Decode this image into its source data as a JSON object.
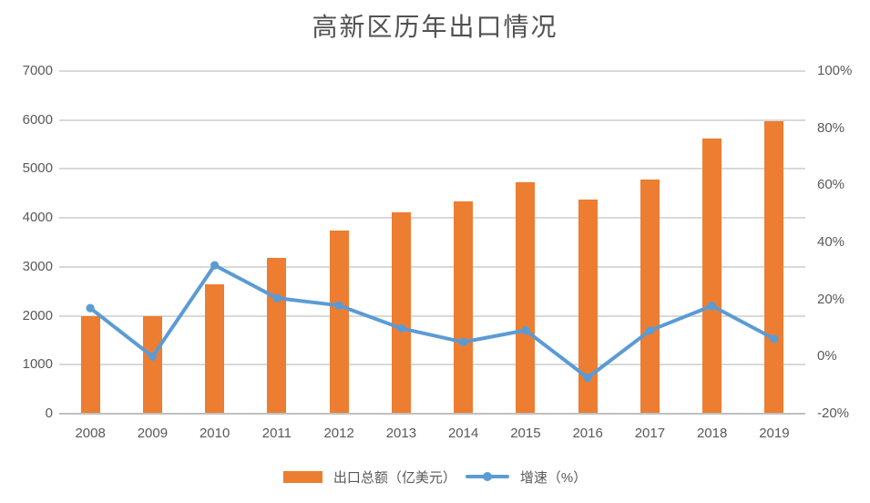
{
  "title": "高新区历年出口情况",
  "chart_data": {
    "type": "bar+line",
    "title": "高新区历年出口情况",
    "categories": [
      "2008",
      "2009",
      "2010",
      "2011",
      "2012",
      "2013",
      "2014",
      "2015",
      "2016",
      "2017",
      "2018",
      "2019"
    ],
    "series": [
      {
        "name": "出口总额（亿美元）",
        "type": "bar",
        "axis": "left",
        "values": [
          2000,
          2000,
          2640,
          3180,
          3750,
          4120,
          4330,
          4730,
          4380,
          4780,
          5630,
          5980
        ]
      },
      {
        "name": "增速（%）",
        "type": "line",
        "axis": "right",
        "values": [
          17,
          0,
          32,
          20.5,
          17.9,
          9.9,
          5.1,
          9.2,
          -7.4,
          9.1,
          17.8,
          6.2
        ]
      }
    ],
    "left_axis": {
      "min": 0,
      "max": 7000,
      "ticks": [
        "0",
        "1000",
        "2000",
        "3000",
        "4000",
        "5000",
        "6000",
        "7000"
      ]
    },
    "right_axis": {
      "min": -20,
      "max": 100,
      "ticks": [
        "-20%",
        "0%",
        "20%",
        "40%",
        "60%",
        "80%",
        "100%"
      ]
    },
    "grid": true,
    "legend_position": "bottom",
    "colors": {
      "bar": "#ED7D31",
      "line": "#5B9BD5",
      "grid": "#D9D9D9",
      "axis_line": "#BFBFBF",
      "text": "#595959",
      "title_text": "#515151",
      "background": "#FFFFFF"
    }
  }
}
